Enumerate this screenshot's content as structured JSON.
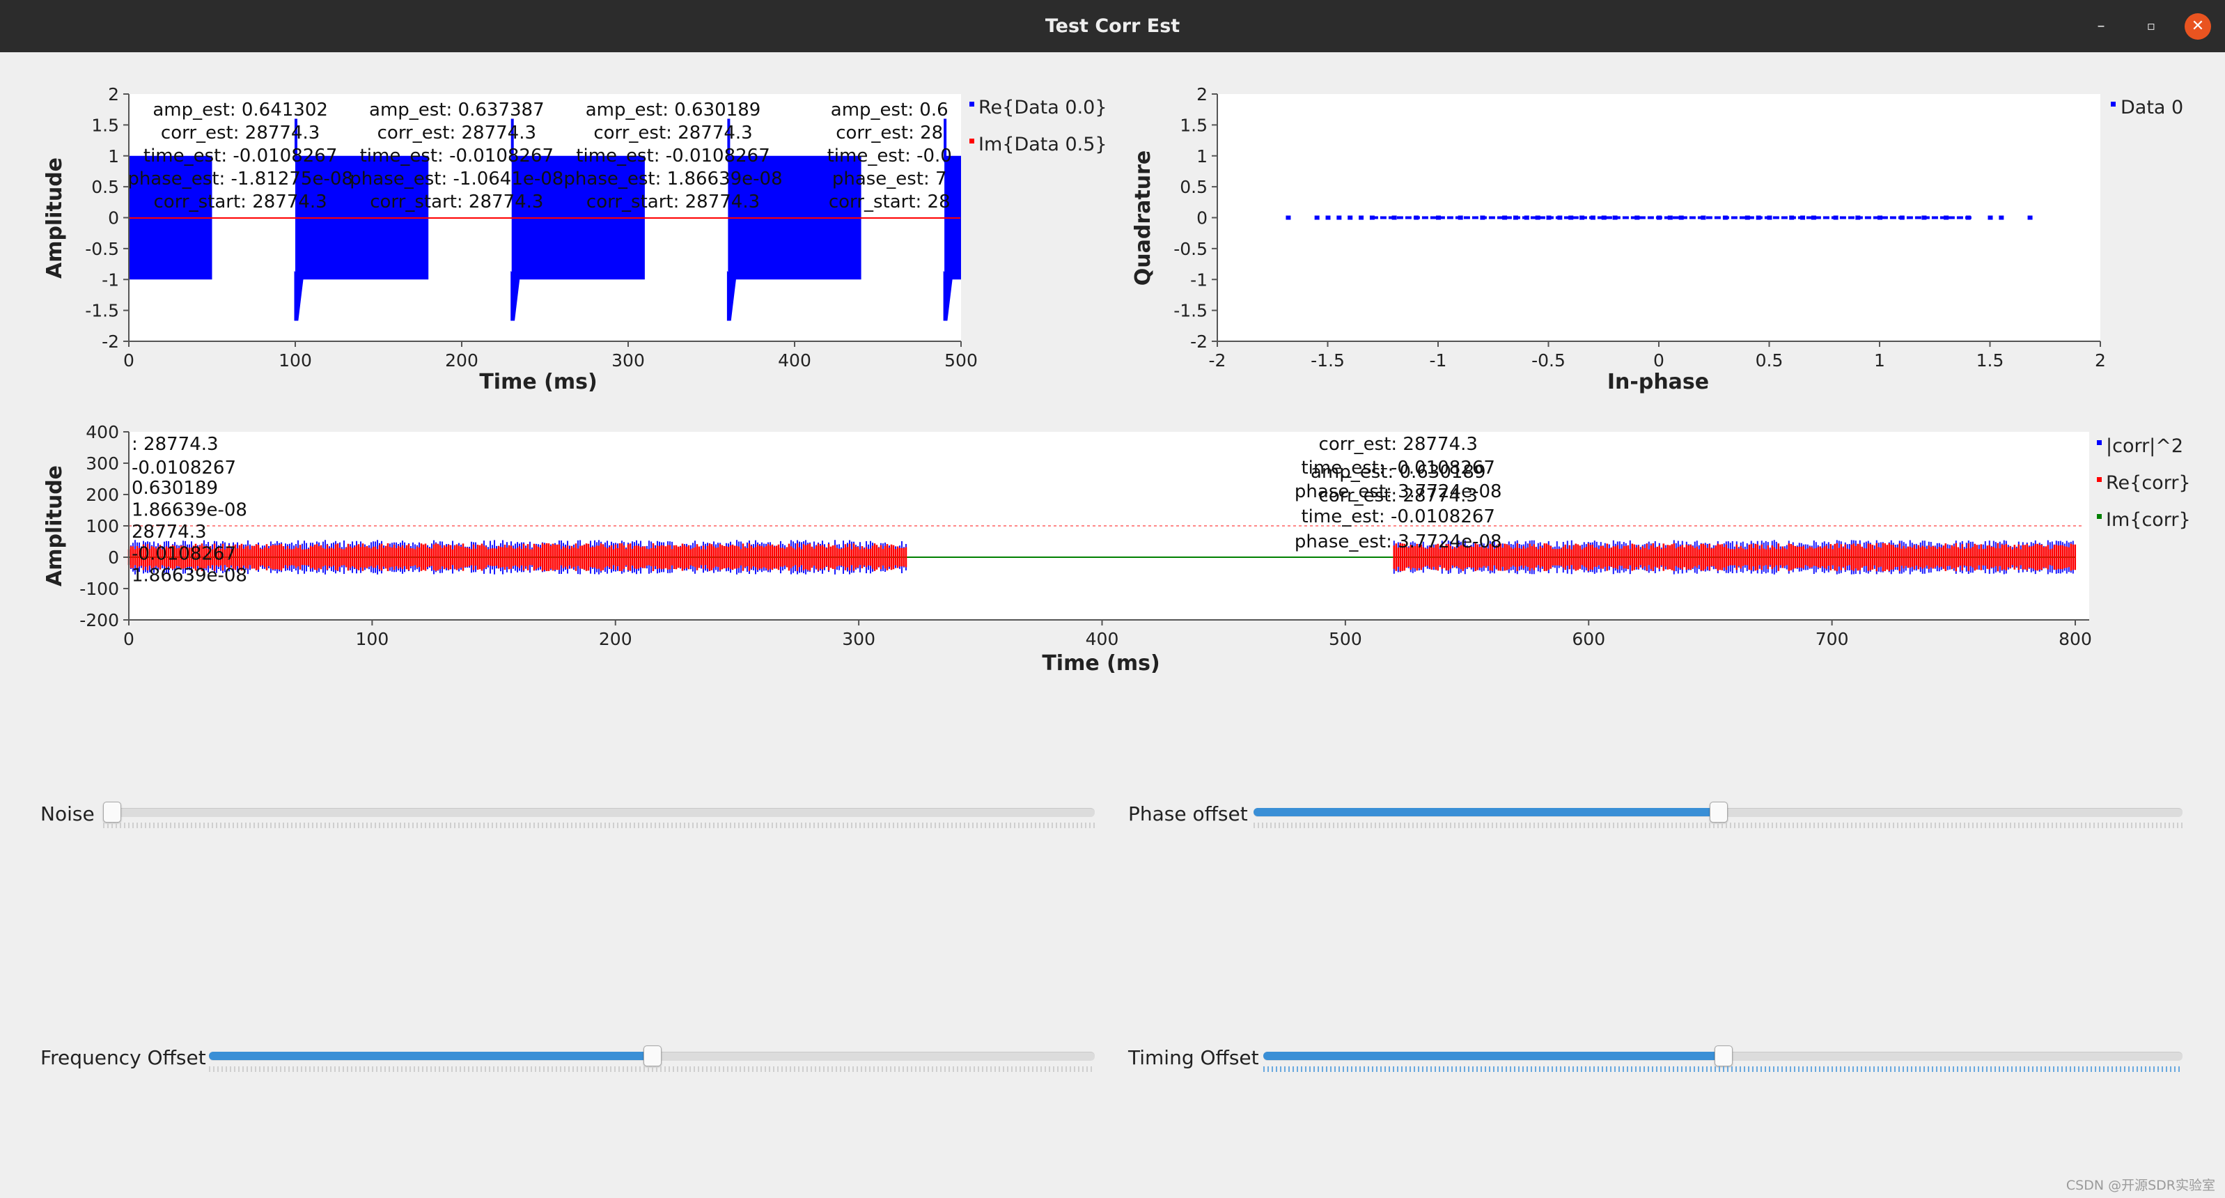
{
  "window": {
    "title": "Test Corr Est",
    "controls": {
      "minimize": "–",
      "maximize": "▫",
      "close": "✕"
    }
  },
  "colors": {
    "blue": "#0000ff",
    "red": "#ff0000",
    "green": "#008000",
    "accent": "#3a8fd6",
    "close": "#e95420"
  },
  "plot1": {
    "legend": [
      "Re{Data 0.0}",
      "Im{Data 0.5}"
    ],
    "annotations": [
      {
        "lines": [
          "amp_est: 0.641302",
          "corr_est: 28774.3",
          "time_est: -0.0108267",
          "phase_est: -1.81275e-08",
          "corr_start: 28774.3"
        ]
      },
      {
        "lines": [
          "amp_est: 0.637387",
          "corr_est: 28774.3",
          "time_est: -0.0108267",
          "phase_est: -1.0641e-08",
          "corr_start: 28774.3"
        ]
      },
      {
        "lines": [
          "amp_est: 0.630189",
          "corr_est: 28774.3",
          "time_est: -0.0108267",
          "phase_est: 1.86639e-08",
          "corr_start: 28774.3"
        ]
      },
      {
        "lines": [
          "amp_est: 0.6",
          "corr_est: 28",
          "time_est: -0.0",
          "phase_est: 7",
          "corr_start: 28"
        ]
      }
    ]
  },
  "plot2": {
    "legend": [
      "Data 0"
    ]
  },
  "plot3": {
    "legend": [
      "|corr|^2",
      "Re{corr}",
      "Im{corr}"
    ],
    "left_annotations": [
      ": 28774.3",
      "-0.0108267",
      "0.630189",
      "1.86639e-08",
      "28774.3",
      "-0.0108267",
      "1.86639e-08"
    ],
    "mid_annotations": [
      {
        "text": "corr_est: 28774.3",
        "dy": 0
      },
      {
        "text": "time_est: -0.0108267",
        "dy": 34
      },
      {
        "text": "amp_est: 0.630189",
        "dy": 40
      },
      {
        "text": "phase_est: 3.7724e-08",
        "dy": 68
      },
      {
        "text": "corr_est: 28774.3",
        "dy": 74
      },
      {
        "text": "time_est: -0.0108267",
        "dy": 104
      },
      {
        "text": "phase_est: 3.7724e-08",
        "dy": 140
      }
    ]
  },
  "chart_data": [
    {
      "type": "line",
      "xlabel": "Time (ms)",
      "ylabel": "Amplitude",
      "xlim": [
        0,
        500
      ],
      "ylim": [
        -2,
        2
      ],
      "xticks": [
        0,
        100,
        200,
        300,
        400,
        500
      ],
      "yticks": [
        2,
        1.5,
        1,
        0.5,
        0,
        -0.5,
        -1,
        -1.5,
        -2
      ],
      "grid": false,
      "legend": "right",
      "series": [
        {
          "name": "Re{Data 0.0}",
          "color": "#0000ff",
          "bursts": [
            [
              0,
              50
            ],
            [
              100,
              180
            ],
            [
              230,
              310
            ],
            [
              360,
              440
            ],
            [
              490,
              500
            ]
          ],
          "amplitude": 1.0,
          "spike": -1.65
        },
        {
          "name": "Im{Data 0.5}",
          "color": "#ff0000",
          "values": "≈0"
        }
      ]
    },
    {
      "type": "scatter",
      "xlabel": "In-phase",
      "ylabel": "Quadrature",
      "xlim": [
        -2,
        2
      ],
      "ylim": [
        -2,
        2
      ],
      "xticks": [
        -2,
        -1.5,
        -1,
        -0.5,
        0,
        0.5,
        1,
        1.5,
        2
      ],
      "yticks": [
        2,
        1.5,
        1,
        0.5,
        0,
        -0.5,
        -1,
        -1.5,
        -2
      ],
      "grid": false,
      "legend": "right",
      "series": [
        {
          "name": "Data 0",
          "color": "#0000ff",
          "x": [
            -1.68,
            -1.55,
            -1.5,
            -1.45,
            -1.4,
            -1.35,
            -1.3,
            -1.2,
            -1.1,
            -1.0,
            -0.9,
            -0.8,
            -0.7,
            -0.65,
            -0.6,
            -0.55,
            -0.5,
            -0.45,
            -0.4,
            -0.35,
            -0.3,
            -0.25,
            -0.2,
            -0.1,
            0,
            0.05,
            0.1,
            0.2,
            0.3,
            0.4,
            0.45,
            0.5,
            0.6,
            0.65,
            0.7,
            0.8,
            0.9,
            1.0,
            1.1,
            1.2,
            1.3,
            1.4,
            1.5,
            1.55,
            1.68
          ],
          "y": [
            0,
            0,
            0,
            0,
            0,
            0,
            0,
            0,
            0,
            0,
            0,
            0,
            0,
            0,
            0,
            0,
            0,
            0,
            0,
            0,
            0,
            0,
            0,
            0,
            0,
            0,
            0,
            0,
            0,
            0,
            0,
            0,
            0,
            0,
            0,
            0,
            0,
            0,
            0,
            0,
            0,
            0,
            0,
            0,
            0
          ]
        }
      ]
    },
    {
      "type": "line",
      "xlabel": "Time (ms)",
      "ylabel": "Amplitude",
      "xlim": [
        0,
        800
      ],
      "ylim": [
        -200,
        400
      ],
      "xticks": [
        0,
        100,
        200,
        300,
        400,
        500,
        600,
        700,
        800
      ],
      "yticks": [
        400,
        300,
        200,
        100,
        0,
        -100,
        -200
      ],
      "grid": false,
      "legend": "right",
      "threshold": 100,
      "series": [
        {
          "name": "|corr|^2",
          "color": "#0000ff",
          "active_ranges": [
            [
              0,
              320
            ],
            [
              520,
              800
            ]
          ],
          "amplitude": 55
        },
        {
          "name": "Re{corr}",
          "color": "#ff0000",
          "active_ranges": [
            [
              0,
              320
            ],
            [
              520,
              800
            ]
          ],
          "amplitude": 45
        },
        {
          "name": "Im{corr}",
          "color": "#008000",
          "values": "≈0"
        }
      ]
    }
  ],
  "controls": {
    "noise": {
      "label": "Noise",
      "value": 0.0
    },
    "phase_offset": {
      "label": "Phase offset",
      "value": 0.5
    },
    "frequency_offset": {
      "label": "Frequency Offset",
      "value": 0.5
    },
    "timing_offset": {
      "label": "Timing Offset",
      "value": 0.5
    }
  },
  "watermark": "CSDN @开源SDR实验室"
}
